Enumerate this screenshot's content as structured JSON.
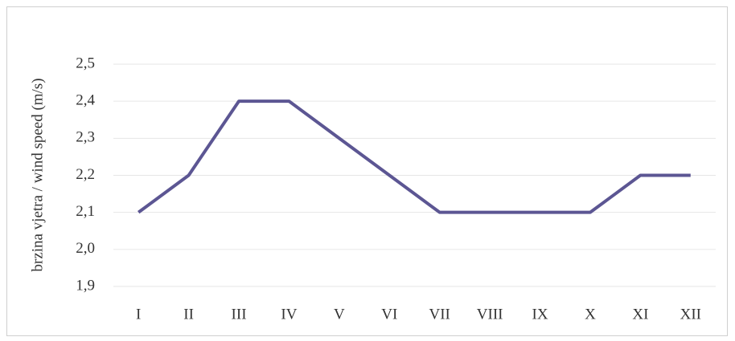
{
  "chart_data": {
    "type": "line",
    "y_label": "brzina vjetra / wind speed (m/s)",
    "categories": [
      "I",
      "II",
      "III",
      "IV",
      "V",
      "VI",
      "VII",
      "VIII",
      "IX",
      "X",
      "XI",
      "XII"
    ],
    "series": [
      {
        "name": "wind speed",
        "color": "#5c5693",
        "values": [
          2.1,
          2.2,
          2.4,
          2.4,
          2.3,
          2.2,
          2.1,
          2.1,
          2.1,
          2.1,
          2.2,
          2.2
        ]
      }
    ],
    "ylim": [
      1.9,
      2.5
    ],
    "yticks": [
      {
        "value": 1.9,
        "label": "1,9"
      },
      {
        "value": 2.0,
        "label": "2,0"
      },
      {
        "value": 2.1,
        "label": "2,1"
      },
      {
        "value": 2.2,
        "label": "2,2"
      },
      {
        "value": 2.3,
        "label": "2,3"
      },
      {
        "value": 2.4,
        "label": "2,4"
      },
      {
        "value": 2.5,
        "label": "2,5"
      }
    ],
    "grid": true
  }
}
